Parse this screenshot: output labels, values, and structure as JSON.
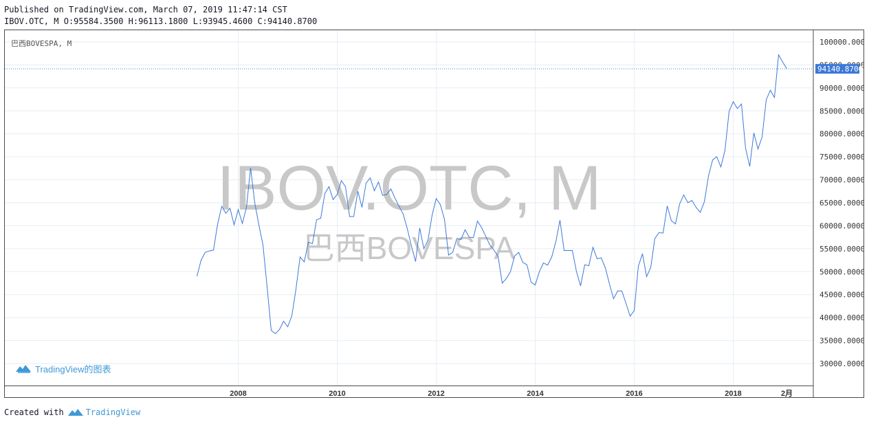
{
  "header": {
    "published": "Published on TradingView.com, March 07, 2019 11:47:14 CST",
    "symbol": "IBOV.OTC, M",
    "open": "O:95584.3500",
    "high": "H:96113.1800",
    "low": "L:93945.4600",
    "close": "C:94140.8700"
  },
  "legend": {
    "label": "巴西BOVESPA, M"
  },
  "watermark": {
    "line1": "IBOV.OTC, M",
    "line2": "巴西BOVESPA"
  },
  "branding": {
    "chart_logo_text": "TradingView的图表"
  },
  "footer": {
    "created_with": "Created with",
    "brand": "TradingView"
  },
  "colors": {
    "line": "#3c78d8",
    "price_label_bg": "#3c78d8",
    "grid": "#e6eef4",
    "watermark": "#c8c8c8",
    "brand": "#3f98d6"
  },
  "chart_data": {
    "type": "line",
    "title": "",
    "xlabel": "",
    "ylabel": "",
    "x_ticks": [
      "2008",
      "2010",
      "2012",
      "2014",
      "2016",
      "2018",
      "2月"
    ],
    "y_ticks": [
      "100000.0000",
      "95000.0000",
      "90000.0000",
      "85000.0000",
      "80000.0000",
      "75000.0000",
      "70000.0000",
      "65000.0000",
      "60000.0000",
      "55000.0000",
      "50000.0000",
      "45000.0000",
      "40000.0000",
      "35000.0000",
      "30000.0000"
    ],
    "ylim": [
      26500,
      103000
    ],
    "last_price_label": "94140.8700",
    "last_value": 94140.87,
    "grid": true,
    "series": [
      {
        "points": [
          [
            "2007-03",
            49000
          ],
          [
            "2007-04",
            52500
          ],
          [
            "2007-05",
            54200
          ],
          [
            "2007-06",
            54500
          ],
          [
            "2007-07",
            54700
          ],
          [
            "2007-08",
            60300
          ],
          [
            "2007-09",
            64200
          ],
          [
            "2007-10",
            62700
          ],
          [
            "2007-11",
            63800
          ],
          [
            "2007-12",
            60200
          ],
          [
            "2008-01",
            63500
          ],
          [
            "2008-02",
            60500
          ],
          [
            "2008-03",
            64000
          ],
          [
            "2008-04",
            72600
          ],
          [
            "2008-05",
            65000
          ],
          [
            "2008-06",
            60200
          ],
          [
            "2008-07",
            55800
          ],
          [
            "2008-08",
            46700
          ],
          [
            "2008-09",
            37200
          ],
          [
            "2008-10",
            36500
          ],
          [
            "2008-11",
            37400
          ],
          [
            "2008-12",
            39200
          ],
          [
            "2009-01",
            38000
          ],
          [
            "2009-02",
            40400
          ],
          [
            "2009-03",
            46200
          ],
          [
            "2009-04",
            53200
          ],
          [
            "2009-05",
            52100
          ],
          [
            "2009-06",
            56400
          ],
          [
            "2009-07",
            56100
          ],
          [
            "2009-08",
            61300
          ],
          [
            "2009-09",
            61600
          ],
          [
            "2009-10",
            67000
          ],
          [
            "2009-11",
            68500
          ],
          [
            "2009-12",
            65700
          ],
          [
            "2010-01",
            66800
          ],
          [
            "2010-02",
            69800
          ],
          [
            "2010-03",
            68500
          ],
          [
            "2010-04",
            62000
          ],
          [
            "2010-05",
            62000
          ],
          [
            "2010-06",
            67500
          ],
          [
            "2010-07",
            64000
          ],
          [
            "2010-08",
            69300
          ],
          [
            "2010-09",
            70400
          ],
          [
            "2010-10",
            67600
          ],
          [
            "2010-11",
            69500
          ],
          [
            "2010-12",
            66600
          ],
          [
            "2011-01",
            66800
          ],
          [
            "2011-02",
            68000
          ],
          [
            "2011-03",
            66000
          ],
          [
            "2011-04",
            64200
          ],
          [
            "2011-05",
            62500
          ],
          [
            "2011-06",
            59300
          ],
          [
            "2011-07",
            55500
          ],
          [
            "2011-08",
            52200
          ],
          [
            "2011-09",
            59500
          ],
          [
            "2011-10",
            55000
          ],
          [
            "2011-11",
            56800
          ],
          [
            "2011-12",
            62300
          ],
          [
            "2012-01",
            65900
          ],
          [
            "2012-02",
            64600
          ],
          [
            "2012-03",
            61400
          ],
          [
            "2012-04",
            53600
          ],
          [
            "2012-05",
            54200
          ],
          [
            "2012-06",
            57200
          ],
          [
            "2012-07",
            57000
          ],
          [
            "2012-08",
            59100
          ],
          [
            "2012-09",
            57500
          ],
          [
            "2012-10",
            57400
          ],
          [
            "2012-11",
            61000
          ],
          [
            "2012-12",
            59600
          ],
          [
            "2013-01",
            57700
          ],
          [
            "2013-02",
            55800
          ],
          [
            "2013-03",
            54700
          ],
          [
            "2013-04",
            53300
          ],
          [
            "2013-05",
            47500
          ],
          [
            "2013-06",
            48500
          ],
          [
            "2013-07",
            50000
          ],
          [
            "2013-08",
            53400
          ],
          [
            "2013-09",
            54200
          ],
          [
            "2013-10",
            52000
          ],
          [
            "2013-11",
            51500
          ],
          [
            "2013-12",
            47700
          ],
          [
            "2014-01",
            47100
          ],
          [
            "2014-02",
            50000
          ],
          [
            "2014-03",
            51900
          ],
          [
            "2014-04",
            51400
          ],
          [
            "2014-05",
            53200
          ],
          [
            "2014-06",
            56500
          ],
          [
            "2014-07",
            61200
          ],
          [
            "2014-08",
            54600
          ],
          [
            "2014-09",
            54600
          ],
          [
            "2014-10",
            54600
          ],
          [
            "2014-11",
            50000
          ],
          [
            "2014-12",
            46900
          ],
          [
            "2015-01",
            51500
          ],
          [
            "2015-02",
            51300
          ],
          [
            "2015-03",
            55300
          ],
          [
            "2015-04",
            52800
          ],
          [
            "2015-05",
            53000
          ],
          [
            "2015-06",
            50800
          ],
          [
            "2015-07",
            47300
          ],
          [
            "2015-08",
            44100
          ],
          [
            "2015-09",
            45800
          ],
          [
            "2015-10",
            45800
          ],
          [
            "2015-11",
            43100
          ],
          [
            "2015-12",
            40300
          ],
          [
            "2016-01",
            41500
          ],
          [
            "2016-02",
            51200
          ],
          [
            "2016-03",
            53900
          ],
          [
            "2016-04",
            48900
          ],
          [
            "2016-05",
            50900
          ],
          [
            "2016-06",
            57200
          ],
          [
            "2016-07",
            58500
          ],
          [
            "2016-08",
            58400
          ],
          [
            "2016-09",
            64300
          ],
          [
            "2016-10",
            61100
          ],
          [
            "2016-11",
            60400
          ],
          [
            "2016-12",
            64700
          ],
          [
            "2017-01",
            66700
          ],
          [
            "2017-02",
            65000
          ],
          [
            "2017-03",
            65500
          ],
          [
            "2017-04",
            64000
          ],
          [
            "2017-05",
            62900
          ],
          [
            "2017-06",
            65200
          ],
          [
            "2017-07",
            70800
          ],
          [
            "2017-08",
            74300
          ],
          [
            "2017-09",
            75000
          ],
          [
            "2017-10",
            72800
          ],
          [
            "2017-11",
            76400
          ],
          [
            "2017-12",
            84900
          ],
          [
            "2018-01",
            87000
          ],
          [
            "2018-02",
            85500
          ],
          [
            "2018-03",
            86500
          ],
          [
            "2018-04",
            76800
          ],
          [
            "2018-05",
            72900
          ],
          [
            "2018-06",
            80200
          ],
          [
            "2018-07",
            76700
          ],
          [
            "2018-08",
            79300
          ],
          [
            "2018-09",
            87400
          ],
          [
            "2018-10",
            89500
          ],
          [
            "2018-11",
            87900
          ],
          [
            "2018-12",
            97200
          ],
          [
            "2019-01",
            95600
          ],
          [
            "2019-02",
            94141
          ]
        ]
      }
    ]
  }
}
